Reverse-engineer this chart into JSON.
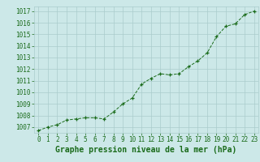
{
  "x": [
    0,
    1,
    2,
    3,
    4,
    5,
    6,
    7,
    8,
    9,
    10,
    11,
    12,
    13,
    14,
    15,
    16,
    17,
    18,
    19,
    20,
    21,
    22,
    23
  ],
  "y": [
    1006.7,
    1007.0,
    1007.2,
    1007.6,
    1007.7,
    1007.8,
    1007.8,
    1007.7,
    1008.3,
    1009.0,
    1009.5,
    1010.7,
    1011.2,
    1011.6,
    1011.5,
    1011.6,
    1012.2,
    1012.7,
    1013.4,
    1014.8,
    1015.7,
    1015.9,
    1016.7,
    1017.0
  ],
  "line_color": "#1a6b1a",
  "marker": "+",
  "bg_color": "#cce8e8",
  "grid_color": "#aacccc",
  "xlabel": "Graphe pression niveau de la mer (hPa)",
  "xlabel_color": "#1a6b1a",
  "ytick_min": 1007,
  "ytick_max": 1017,
  "ytick_step": 1,
  "tick_color": "#1a6b1a",
  "tick_fontsize": 5.5,
  "xlabel_fontsize": 7,
  "ylim": [
    1006.5,
    1017.4
  ],
  "xlim": [
    -0.5,
    23.5
  ]
}
